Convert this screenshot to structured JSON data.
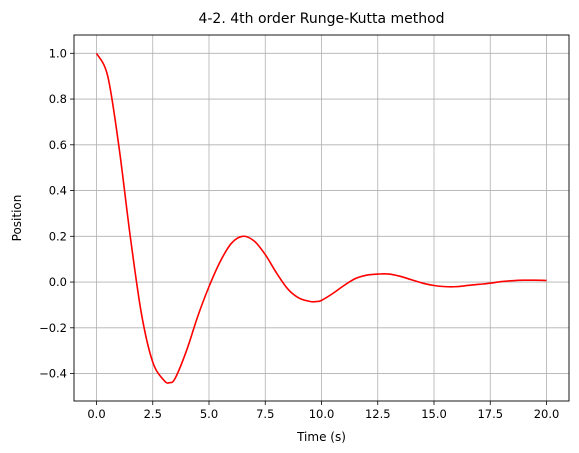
{
  "chart_data": {
    "type": "line",
    "title": "4-2. 4th order Runge-Kutta method",
    "xlabel": "Time (s)",
    "ylabel": "Position",
    "xlim": [
      -1.0,
      21.0
    ],
    "ylim": [
      -0.52,
      1.08
    ],
    "grid": true,
    "xticks": [
      0.0,
      2.5,
      5.0,
      7.5,
      10.0,
      12.5,
      15.0,
      17.5,
      20.0
    ],
    "xtick_labels": [
      "0.0",
      "2.5",
      "5.0",
      "7.5",
      "10.0",
      "12.5",
      "15.0",
      "17.5",
      "20.0"
    ],
    "yticks": [
      -0.4,
      -0.2,
      0.0,
      0.2,
      0.4,
      0.6,
      0.8,
      1.0
    ],
    "ytick_labels": [
      "−0.4",
      "−0.2",
      "0.0",
      "0.2",
      "0.4",
      "0.6",
      "0.8",
      "1.0"
    ],
    "series": [
      {
        "color": "#ff0000",
        "x": [
          0.0,
          0.5,
          1.0,
          1.5,
          2.0,
          2.5,
          3.0,
          3.25,
          3.5,
          4.0,
          4.5,
          5.0,
          5.5,
          6.0,
          6.5,
          7.0,
          7.5,
          8.0,
          8.5,
          9.0,
          9.5,
          9.8,
          10.0,
          10.5,
          11.0,
          11.5,
          12.0,
          12.5,
          13.0,
          13.5,
          14.0,
          14.5,
          15.0,
          15.5,
          16.0,
          16.5,
          17.0,
          17.5,
          18.0,
          18.5,
          19.0,
          19.5,
          20.0
        ],
        "y": [
          1.0,
          0.9,
          0.59,
          0.2,
          -0.14,
          -0.35,
          -0.43,
          -0.44,
          -0.42,
          -0.3,
          -0.15,
          -0.02,
          0.09,
          0.17,
          0.2,
          0.18,
          0.12,
          0.04,
          -0.03,
          -0.07,
          -0.085,
          -0.085,
          -0.08,
          -0.05,
          -0.015,
          0.015,
          0.03,
          0.035,
          0.035,
          0.025,
          0.01,
          -0.005,
          -0.015,
          -0.02,
          -0.02,
          -0.015,
          -0.01,
          -0.005,
          0.002,
          0.006,
          0.008,
          0.008,
          0.007
        ]
      }
    ]
  }
}
